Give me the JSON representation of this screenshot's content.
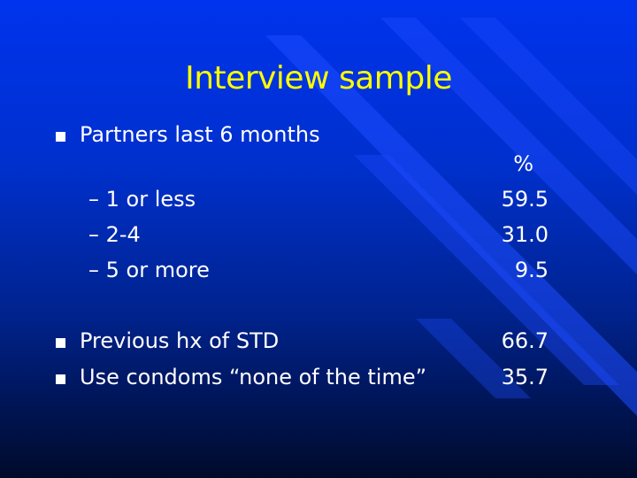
{
  "title": "Interview sample",
  "items": [
    {
      "label": "Partners last 6 months",
      "value": ""
    },
    {
      "label": "Previous hx of STD",
      "value": "66.7"
    },
    {
      "label": "Use condoms “none of the time”",
      "value": "35.7"
    }
  ],
  "percent_header": "%",
  "subitems": [
    {
      "label": "– 1 or less",
      "value": "59.5"
    },
    {
      "label": "– 2-4",
      "value": "31.0"
    },
    {
      "label": "– 5 or more",
      "value": "9.5"
    }
  ],
  "colors": {
    "title": "#ffff00",
    "text": "#ffffff",
    "background": "#0030cc"
  }
}
